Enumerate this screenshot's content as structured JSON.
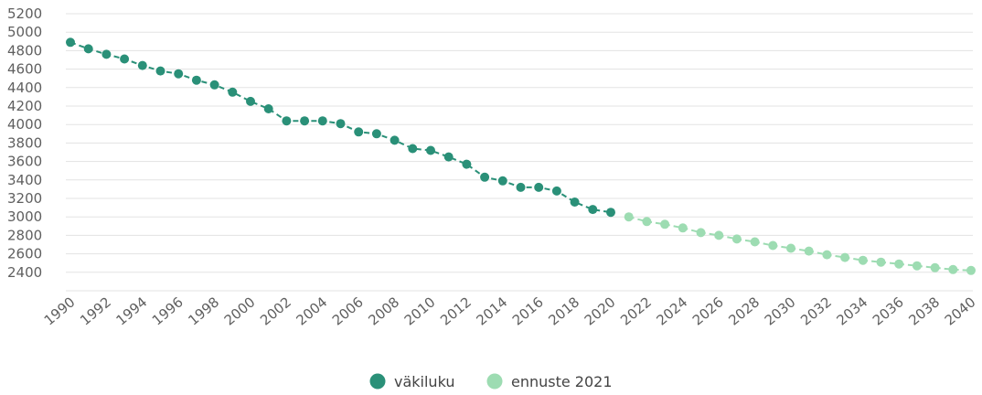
{
  "chart_data": {
    "type": "line",
    "x": [
      1990,
      1991,
      1992,
      1993,
      1994,
      1995,
      1996,
      1997,
      1998,
      1999,
      2000,
      2001,
      2002,
      2003,
      2004,
      2005,
      2006,
      2007,
      2008,
      2009,
      2010,
      2011,
      2012,
      2013,
      2014,
      2015,
      2016,
      2017,
      2018,
      2019,
      2020,
      2021,
      2022,
      2023,
      2024,
      2025,
      2026,
      2027,
      2028,
      2029,
      2030,
      2031,
      2032,
      2033,
      2034,
      2035,
      2036,
      2037,
      2038,
      2039,
      2040
    ],
    "series": [
      {
        "name": "väkiluku",
        "color": "#2a9078",
        "x": [
          1990,
          1991,
          1992,
          1993,
          1994,
          1995,
          1996,
          1997,
          1998,
          1999,
          2000,
          2001,
          2002,
          2003,
          2004,
          2005,
          2006,
          2007,
          2008,
          2009,
          2010,
          2011,
          2012,
          2013,
          2014,
          2015,
          2016,
          2017,
          2018,
          2019,
          2020
        ],
        "values": [
          4890,
          4820,
          4760,
          4710,
          4640,
          4580,
          4550,
          4480,
          4430,
          4350,
          4250,
          4170,
          4040,
          4040,
          4040,
          4010,
          3920,
          3900,
          3830,
          3740,
          3720,
          3650,
          3570,
          3430,
          3390,
          3320,
          3320,
          3280,
          3160,
          3080,
          3050
        ]
      },
      {
        "name": "ennuste 2021",
        "color": "#9ddcb2",
        "x": [
          2021,
          2022,
          2023,
          2024,
          2025,
          2026,
          2027,
          2028,
          2029,
          2030,
          2031,
          2032,
          2033,
          2034,
          2035,
          2036,
          2037,
          2038,
          2039,
          2040
        ],
        "values": [
          3000,
          2950,
          2920,
          2880,
          2830,
          2800,
          2760,
          2730,
          2690,
          2660,
          2630,
          2590,
          2560,
          2530,
          2510,
          2490,
          2470,
          2450,
          2430,
          2420
        ]
      }
    ],
    "x_tick_labels": [
      "1990",
      "1992",
      "1994",
      "1996",
      "1998",
      "2000",
      "2002",
      "2004",
      "2006",
      "2008",
      "2010",
      "2012",
      "2014",
      "2016",
      "2018",
      "2020",
      "2022",
      "2024",
      "2026",
      "2028",
      "2030",
      "2032",
      "2034",
      "2036",
      "2038",
      "2040"
    ],
    "y_ticks": [
      2400,
      2600,
      2800,
      3000,
      3200,
      3400,
      3600,
      3800,
      4000,
      4200,
      4400,
      4600,
      4800,
      5000,
      5200
    ],
    "ylim": [
      2200,
      5200
    ],
    "xlim": [
      1990,
      2040
    ],
    "grid": true,
    "legend_position": "bottom-center",
    "title": "",
    "xlabel": "",
    "ylabel": ""
  }
}
